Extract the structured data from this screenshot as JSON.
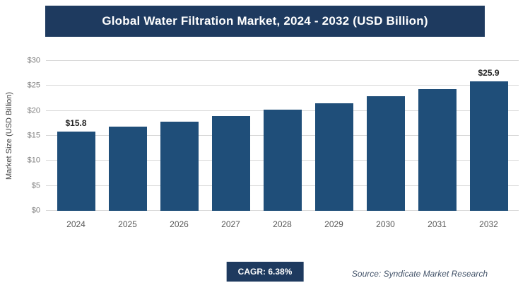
{
  "header": {
    "title": "Global Water Filtration Market, 2024 - 2032 (USD Billion)"
  },
  "chart_data": {
    "type": "bar",
    "title": "Global Water Filtration Market, 2024 - 2032 (USD Billion)",
    "categories": [
      "2024",
      "2025",
      "2026",
      "2027",
      "2028",
      "2029",
      "2030",
      "2031",
      "2032"
    ],
    "values": [
      15.8,
      16.8,
      17.9,
      19.0,
      20.2,
      21.5,
      22.9,
      24.3,
      25.9
    ],
    "data_labels": [
      "$15.8",
      "",
      "",
      "",
      "",
      "",
      "",
      "",
      "$25.9"
    ],
    "xlabel": "",
    "ylabel": "Market Size (USD Billion)",
    "ylim": [
      0,
      30
    ],
    "ytick_step": 5,
    "ytick_labels": [
      "$0",
      "$5",
      "$10",
      "$15",
      "$20",
      "$25",
      "$30"
    ],
    "bar_color": "#1f4e79",
    "grid": true,
    "legend": "none"
  },
  "footer": {
    "cagr_label": "CAGR: 6.38%",
    "source": "Source: Syndicate Market Research"
  },
  "colors": {
    "header_bg": "#1e3a5f",
    "badge_bg": "#1e3a5f",
    "bar": "#1f4e79",
    "gridline": "#d9d9d9"
  }
}
